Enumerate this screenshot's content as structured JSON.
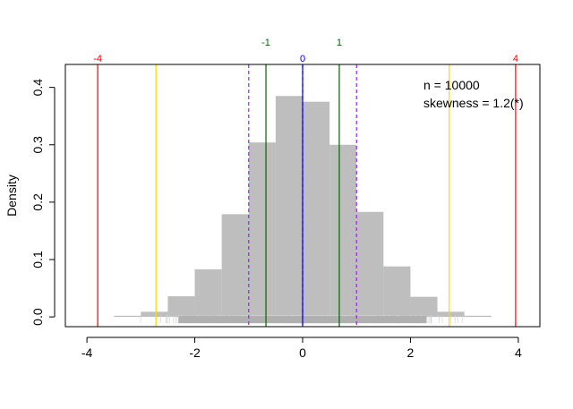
{
  "chart_data": {
    "type": "histogram",
    "title": "",
    "xlabel": "",
    "ylabel": "Density",
    "xlim": [
      -4.4,
      4.4
    ],
    "ylim": [
      -0.017,
      0.44
    ],
    "x_ticks": [
      -4,
      -2,
      0,
      2,
      4
    ],
    "y_ticks": [
      0.0,
      0.1,
      0.2,
      0.3,
      0.4
    ],
    "x_tick_labels": [
      "-4",
      "-2",
      "0",
      "2",
      "4"
    ],
    "y_tick_labels": [
      "0.0",
      "0.1",
      "0.2",
      "0.3",
      "0.4"
    ],
    "bar_color": "#bebebe",
    "bins": [
      {
        "x0": -3.5,
        "x1": -3.0,
        "density": 0.002
      },
      {
        "x0": -3.0,
        "x1": -2.5,
        "density": 0.009
      },
      {
        "x0": -2.5,
        "x1": -2.0,
        "density": 0.036
      },
      {
        "x0": -2.0,
        "x1": -1.5,
        "density": 0.083
      },
      {
        "x0": -1.5,
        "x1": -1.0,
        "density": 0.179
      },
      {
        "x0": -1.0,
        "x1": -0.5,
        "density": 0.304
      },
      {
        "x0": -0.5,
        "x1": 0.0,
        "density": 0.385
      },
      {
        "x0": 0.0,
        "x1": 0.5,
        "density": 0.375
      },
      {
        "x0": 0.5,
        "x1": 1.0,
        "density": 0.3
      },
      {
        "x0": 1.0,
        "x1": 1.5,
        "density": 0.183
      },
      {
        "x0": 1.5,
        "x1": 2.0,
        "density": 0.088
      },
      {
        "x0": 2.0,
        "x1": 2.5,
        "density": 0.035
      },
      {
        "x0": 2.5,
        "x1": 3.0,
        "density": 0.009
      },
      {
        "x0": 3.0,
        "x1": 3.5,
        "density": 0.002
      }
    ],
    "rug_range": [
      -3.5,
      3.5
    ],
    "reference_lines": [
      {
        "x": -3.8,
        "label": "-4",
        "color": "#ff0000",
        "style": "solid"
      },
      {
        "x": 3.95,
        "label": "4",
        "color": "#ff0000",
        "style": "solid"
      },
      {
        "x": -2.72,
        "label": "",
        "color": "#ffd700",
        "style": "solid"
      },
      {
        "x": 2.72,
        "label": "",
        "color": "#ffd700",
        "style": "solid"
      },
      {
        "x": -0.68,
        "label": "-1",
        "color": "#006400",
        "style": "solid"
      },
      {
        "x": 0.68,
        "label": "1",
        "color": "#006400",
        "style": "solid"
      },
      {
        "x": -1.0,
        "label": "",
        "color": "#a020f0",
        "style": "dashed"
      },
      {
        "x": 1.0,
        "label": "",
        "color": "#a020f0",
        "style": "dashed"
      },
      {
        "x": 0.0,
        "label": "0",
        "color": "#0000ff",
        "style": "solid"
      },
      {
        "x": 0.0,
        "label": "",
        "color": "#0000ff",
        "style": "dashed"
      }
    ],
    "annotations": [
      "n = 10000",
      "skewness = 1.2(*)"
    ],
    "grid": false,
    "legend": "none"
  }
}
